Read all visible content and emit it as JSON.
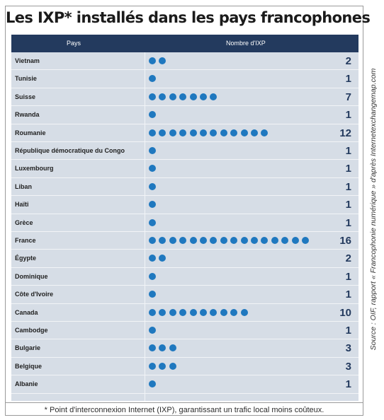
{
  "title": "Les IXP* installés dans les pays francophones",
  "header": {
    "pays": "Pays",
    "nombre": "Nombre d'IXP"
  },
  "footnote": "* Point d'interconnexion Internet (IXP), garantissant un trafic local moins coûteux.",
  "source": "Source : OIF, rapport « Francophonie numérique » d'après Internetexchangemap.com",
  "colors": {
    "header_bg": "#233a5e",
    "row_bg": "#d6dde6",
    "dot": "#1f78bf",
    "value": "#233a5e"
  },
  "chart_data": {
    "type": "table",
    "title": "Les IXP* installés dans les pays francophones",
    "columns": [
      "Pays",
      "Nombre d'IXP"
    ],
    "categories": [
      "Vietnam",
      "Tunisie",
      "Suisse",
      "Rwanda",
      "Roumanie",
      "République démocratique du Congo",
      "Luxembourg",
      "Liban",
      "Haïti",
      "Grèce",
      "France",
      "Égypte",
      "Dominique",
      "Côte d'Ivoire",
      "Canada",
      "Cambodge",
      "Bulgarie",
      "Belgique",
      "Albanie"
    ],
    "values": [
      2,
      1,
      7,
      1,
      12,
      1,
      1,
      1,
      1,
      1,
      16,
      2,
      1,
      1,
      10,
      1,
      3,
      3,
      1
    ]
  }
}
